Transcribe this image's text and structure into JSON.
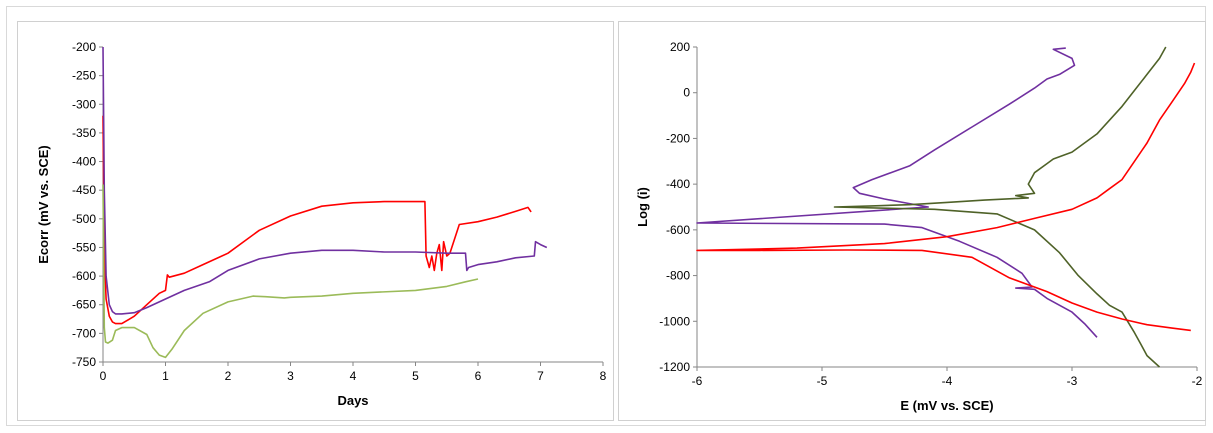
{
  "chart_data": [
    {
      "type": "line",
      "title": "",
      "xlabel": "Days",
      "ylabel": "Ecorr (mV vs. SCE)",
      "xlim": [
        0,
        8
      ],
      "ylim": [
        -750,
        -200
      ],
      "xticks": [
        0,
        1,
        2,
        3,
        4,
        5,
        6,
        7,
        8
      ],
      "yticks": [
        -200,
        -250,
        -300,
        -350,
        -400,
        -450,
        -500,
        -550,
        -600,
        -650,
        -700,
        -750
      ],
      "grid": false,
      "legend": "none",
      "series": [
        {
          "color": "#ff0000",
          "x": [
            0,
            0.02,
            0.05,
            0.1,
            0.15,
            0.2,
            0.3,
            0.5,
            0.7,
            0.9,
            1.0,
            1.03,
            1.06,
            1.3,
            1.6,
            2.0,
            2.5,
            3.0,
            3.5,
            4.0,
            4.5,
            5.0,
            5.15,
            5.17,
            5.22,
            5.26,
            5.3,
            5.34,
            5.38,
            5.42,
            5.45,
            5.5,
            5.55,
            5.7,
            6.0,
            6.3,
            6.6,
            6.8,
            6.85
          ],
          "y": [
            -320,
            -560,
            -640,
            -670,
            -680,
            -683,
            -683,
            -670,
            -650,
            -630,
            -625,
            -598,
            -602,
            -595,
            -580,
            -560,
            -520,
            -495,
            -478,
            -472,
            -470,
            -470,
            -470,
            -565,
            -585,
            -565,
            -590,
            -560,
            -545,
            -590,
            -540,
            -565,
            -560,
            -510,
            -505,
            -497,
            -487,
            -480,
            -488
          ]
        },
        {
          "color": "#7030a0",
          "x": [
            0,
            0.02,
            0.05,
            0.1,
            0.15,
            0.2,
            0.3,
            0.5,
            0.7,
            1.0,
            1.3,
            1.7,
            2.0,
            2.5,
            3.0,
            3.5,
            4.0,
            4.5,
            5.0,
            5.5,
            5.8,
            5.82,
            5.85,
            6.0,
            6.3,
            6.6,
            6.9,
            6.92,
            7.0,
            7.1
          ],
          "y": [
            -200,
            -450,
            -600,
            -650,
            -662,
            -666,
            -666,
            -664,
            -655,
            -640,
            -625,
            -610,
            -590,
            -570,
            -560,
            -555,
            -555,
            -558,
            -558,
            -560,
            -560,
            -590,
            -585,
            -580,
            -575,
            -568,
            -565,
            -540,
            -545,
            -550
          ]
        },
        {
          "color": "#9bbb59",
          "x": [
            0,
            0.02,
            0.04,
            0.08,
            0.15,
            0.2,
            0.3,
            0.5,
            0.7,
            0.8,
            0.9,
            1.0,
            1.1,
            1.3,
            1.6,
            2.0,
            2.4,
            2.6,
            2.9,
            3.0,
            3.5,
            4.0,
            5.0,
            5.5,
            5.8,
            6.0
          ],
          "y": [
            -440,
            -690,
            -715,
            -717,
            -712,
            -695,
            -690,
            -690,
            -702,
            -725,
            -738,
            -742,
            -728,
            -695,
            -665,
            -645,
            -635,
            -636,
            -638,
            -637,
            -635,
            -630,
            -625,
            -618,
            -610,
            -605
          ]
        }
      ]
    },
    {
      "type": "line",
      "title": "",
      "xlabel": "E (mV vs. SCE)",
      "ylabel": "Log (i)",
      "xlim": [
        -6,
        -2
      ],
      "ylim": [
        -1200,
        200
      ],
      "xticks": [
        -6,
        -5,
        -4,
        -3,
        -2
      ],
      "yticks": [
        200,
        0,
        -200,
        -400,
        -600,
        -800,
        -1000,
        -1200
      ],
      "grid": false,
      "legend": "none",
      "series": [
        {
          "color": "#7030a0",
          "x": [
            -3.05,
            -3.15,
            -3.0,
            -2.98,
            -3.1,
            -3.2,
            -3.3,
            -3.5,
            -3.8,
            -4.1,
            -4.3,
            -4.45,
            -4.6,
            -4.75,
            -4.7,
            -4.5,
            -4.3,
            -4.15,
            -6.0,
            -6.0,
            -4.5,
            -4.2,
            -3.9,
            -3.6,
            -3.4,
            -3.32,
            -3.45,
            -3.3,
            -3.2,
            -3.0,
            -2.9,
            -2.8
          ],
          "y": [
            195,
            190,
            150,
            120,
            80,
            60,
            20,
            -50,
            -150,
            -250,
            -320,
            -350,
            -380,
            -415,
            -440,
            -465,
            -485,
            -500,
            -570,
            -570,
            -575,
            -590,
            -650,
            -720,
            -790,
            -850,
            -855,
            -860,
            -900,
            -960,
            -1010,
            -1070
          ]
        },
        {
          "color": "#4f6228",
          "x": [
            -2.25,
            -2.3,
            -2.4,
            -2.5,
            -2.6,
            -2.8,
            -3.0,
            -3.15,
            -3.2,
            -3.3,
            -3.35,
            -3.3,
            -3.45,
            -3.35,
            -3.7,
            -4.0,
            -4.3,
            -4.6,
            -4.9,
            -4.1,
            -3.6,
            -3.3,
            -3.1,
            -2.95,
            -2.8,
            -2.7,
            -2.6,
            -2.5,
            -2.45,
            -2.4,
            -2.3
          ],
          "y": [
            200,
            150,
            80,
            10,
            -60,
            -180,
            -260,
            -290,
            -310,
            -350,
            -400,
            -440,
            -450,
            -460,
            -470,
            -480,
            -490,
            -495,
            -500,
            -510,
            -530,
            -600,
            -700,
            -800,
            -880,
            -930,
            -960,
            -1050,
            -1100,
            -1150,
            -1200
          ]
        },
        {
          "color": "#ff0000",
          "x": [
            -2.02,
            -2.05,
            -2.1,
            -2.2,
            -2.3,
            -2.4,
            -2.5,
            -2.6,
            -2.7,
            -2.8,
            -3.0,
            -3.3,
            -3.6,
            -4.0,
            -4.5,
            -5.2,
            -6.0,
            -6.0,
            -5.5,
            -4.8,
            -4.2,
            -3.8,
            -3.5,
            -3.2,
            -3.0,
            -2.8,
            -2.6,
            -2.4,
            -2.2,
            -2.05
          ],
          "y": [
            130,
            90,
            40,
            -40,
            -120,
            -220,
            -300,
            -380,
            -420,
            -460,
            -510,
            -550,
            -590,
            -630,
            -660,
            -680,
            -690,
            -690,
            -690,
            -688,
            -690,
            -720,
            -810,
            -870,
            -920,
            -960,
            -990,
            -1015,
            -1030,
            -1040
          ]
        }
      ]
    }
  ]
}
